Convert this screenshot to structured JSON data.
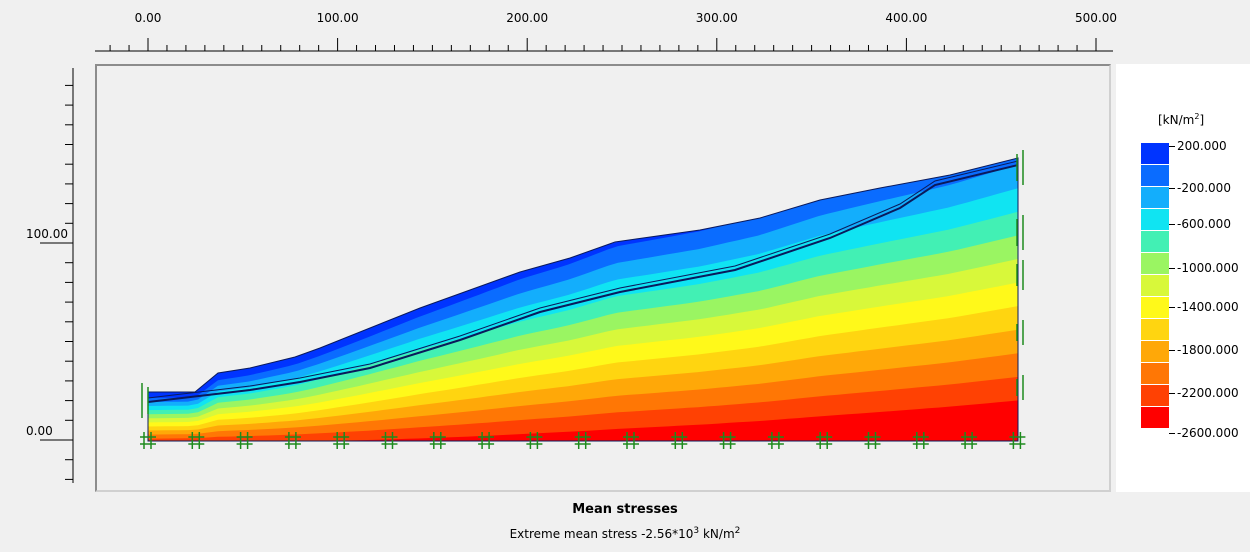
{
  "x_axis": {
    "ticks": [
      "0.00",
      "100.00",
      "200.00",
      "300.00",
      "400.00",
      "500.00"
    ],
    "tick_values": [
      0,
      100,
      200,
      300,
      400,
      500
    ]
  },
  "y_axis": {
    "ticks": [
      "100.00",
      "0.00"
    ],
    "tick_values": [
      100,
      0
    ]
  },
  "legend": {
    "unit_base": "[kN/m",
    "unit_exp": "2",
    "unit_close": "]",
    "levels": [
      {
        "label": "200.000",
        "color": "#0034ff"
      },
      {
        "label": "-200.000",
        "color": "#0a6cff"
      },
      {
        "label": "-600.000",
        "color": "#13aefc"
      },
      {
        "label": "-1000.000",
        "color": "#10e4f2"
      },
      {
        "label": "-1400.000",
        "color": "#42f0b4"
      },
      {
        "label": "",
        "color": "#9af562"
      },
      {
        "label": "",
        "color": "#d8f83a"
      },
      {
        "label": "",
        "color": "#fff91a"
      },
      {
        "label": "-1800.000",
        "color": "#ffd510"
      },
      {
        "label": "",
        "color": "#ffa808"
      },
      {
        "label": "-2200.000",
        "color": "#ff7705"
      },
      {
        "label": "",
        "color": "#ff4103"
      },
      {
        "label": "-2600.000",
        "color": "#ff0000"
      }
    ]
  },
  "title": "Mean stresses",
  "subtitle": {
    "text": "Extreme mean stress -2.56*10",
    "exp": "3",
    "unit": "kN/m",
    "unit_exp": "2"
  },
  "colors": {
    "mesh_line": "#0a1a5c",
    "fixity": "#1d8a1d",
    "ruler": "#000000"
  }
}
